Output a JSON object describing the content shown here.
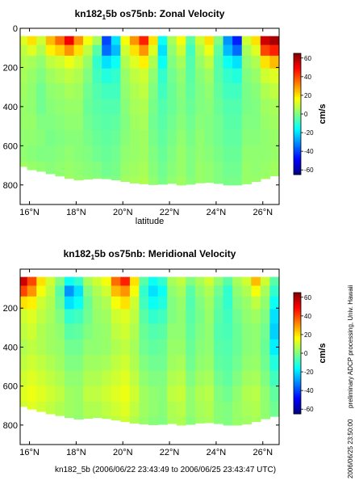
{
  "page_footer": "kn182_5b (2006/06/22 23:43:49 to 2006/06/25 23:43:47 UTC)",
  "side_note": "preliminary ADCP processing,  Univ. Hawaii",
  "side_stamp": "2006/06/25 23:50:00",
  "colorscale": [
    "#00007f",
    "#0000ff",
    "#0080ff",
    "#00ffff",
    "#80ff80",
    "#ffff00",
    "#ff8000",
    "#ff0000",
    "#7f0000"
  ],
  "chart_data": [
    {
      "type": "heatmap",
      "title": {
        "pre": "kn182",
        "sub": "1",
        "post": "5b os75nb: Zonal Velocity"
      },
      "xlabel": "latitude",
      "x_ticks": [
        {
          "v": 16,
          "label": "16°N"
        },
        {
          "v": 18,
          "label": "18°N"
        },
        {
          "v": 20,
          "label": "20°N"
        },
        {
          "v": 22,
          "label": "22°N"
        },
        {
          "v": 24,
          "label": "24°N"
        },
        {
          "v": 26,
          "label": "26°N"
        }
      ],
      "y_ticks": [
        {
          "v": 0,
          "label": "0"
        },
        {
          "v": 200,
          "label": "200"
        },
        {
          "v": 400,
          "label": "400"
        },
        {
          "v": 600,
          "label": "600"
        },
        {
          "v": 800,
          "label": "800"
        }
      ],
      "xlim": [
        15.6,
        26.7
      ],
      "ylim": [
        900,
        0
      ],
      "colorbar": {
        "label": "cm/s",
        "range": [
          -65,
          65
        ],
        "ticks": [
          -60,
          -40,
          -20,
          0,
          20,
          40,
          60
        ]
      },
      "depth_top": 40,
      "bottom_profile": [
        [
          15.6,
          700
        ],
        [
          16.0,
          720
        ],
        [
          16.5,
          730
        ],
        [
          17.0,
          745
        ],
        [
          17.5,
          760
        ],
        [
          18.0,
          775
        ],
        [
          18.5,
          770
        ],
        [
          19.0,
          765
        ],
        [
          19.5,
          770
        ],
        [
          20.0,
          780
        ],
        [
          20.5,
          790
        ],
        [
          21.0,
          795
        ],
        [
          21.5,
          800
        ],
        [
          22.0,
          790
        ],
        [
          22.5,
          800
        ],
        [
          23.0,
          795
        ],
        [
          23.5,
          785
        ],
        [
          24.0,
          790
        ],
        [
          24.5,
          800
        ],
        [
          25.0,
          800
        ],
        [
          25.5,
          790
        ],
        [
          26.0,
          770
        ],
        [
          26.4,
          760
        ],
        [
          26.7,
          740
        ]
      ],
      "depth_levels": [
        60,
        110,
        170,
        240,
        320,
        400,
        480,
        560,
        640,
        720,
        790
      ],
      "columns": [
        {
          "lat": 15.7,
          "u": [
            12,
            8,
            6,
            5,
            4,
            3,
            3,
            2,
            2,
            4,
            5
          ]
        },
        {
          "lat": 16.1,
          "u": [
            20,
            12,
            5,
            3,
            2,
            2,
            3,
            2,
            1,
            3,
            4
          ]
        },
        {
          "lat": 16.5,
          "u": [
            10,
            6,
            2,
            0,
            -2,
            -2,
            0,
            1,
            0,
            2,
            3
          ]
        },
        {
          "lat": 16.9,
          "u": [
            25,
            18,
            8,
            4,
            2,
            1,
            0,
            -1,
            0,
            1,
            2
          ]
        },
        {
          "lat": 17.3,
          "u": [
            35,
            22,
            10,
            6,
            3,
            2,
            1,
            0,
            1,
            2,
            3
          ]
        },
        {
          "lat": 17.7,
          "u": [
            50,
            30,
            14,
            8,
            5,
            3,
            2,
            1,
            2,
            3,
            4
          ]
        },
        {
          "lat": 18.1,
          "u": [
            30,
            20,
            10,
            6,
            4,
            3,
            2,
            1,
            1,
            2,
            3
          ]
        },
        {
          "lat": 18.5,
          "u": [
            15,
            8,
            3,
            0,
            -2,
            -3,
            -2,
            -1,
            0,
            1,
            2
          ]
        },
        {
          "lat": 18.9,
          "u": [
            5,
            -5,
            -10,
            -8,
            -6,
            -5,
            -4,
            -3,
            -2,
            0,
            1
          ]
        },
        {
          "lat": 19.3,
          "u": [
            -40,
            -35,
            -20,
            -12,
            -8,
            -6,
            -5,
            -4,
            -3,
            -2,
            0
          ]
        },
        {
          "lat": 19.7,
          "u": [
            -20,
            -25,
            -15,
            -10,
            -8,
            -6,
            -4,
            -3,
            -2,
            -1,
            0
          ]
        },
        {
          "lat": 20.1,
          "u": [
            15,
            10,
            6,
            3,
            2,
            1,
            0,
            1,
            2,
            3,
            4
          ]
        },
        {
          "lat": 20.5,
          "u": [
            30,
            20,
            12,
            8,
            6,
            5,
            4,
            3,
            3,
            4,
            5
          ]
        },
        {
          "lat": 20.9,
          "u": [
            45,
            30,
            18,
            10,
            8,
            6,
            5,
            4,
            4,
            5,
            6
          ]
        },
        {
          "lat": 21.3,
          "u": [
            20,
            12,
            6,
            2,
            0,
            -1,
            -2,
            -1,
            0,
            1,
            2
          ]
        },
        {
          "lat": 21.7,
          "u": [
            -15,
            -20,
            -15,
            -10,
            -8,
            -6,
            -5,
            -4,
            -3,
            -2,
            -1
          ]
        },
        {
          "lat": 22.1,
          "u": [
            5,
            2,
            0,
            -2,
            -3,
            -3,
            -2,
            -1,
            0,
            1,
            2
          ]
        },
        {
          "lat": 22.5,
          "u": [
            15,
            10,
            5,
            2,
            1,
            0,
            1,
            2,
            3,
            3,
            4
          ]
        },
        {
          "lat": 22.9,
          "u": [
            -5,
            -8,
            -6,
            -5,
            -4,
            -3,
            -2,
            -1,
            0,
            0,
            1
          ]
        },
        {
          "lat": 23.3,
          "u": [
            10,
            6,
            3,
            1,
            0,
            0,
            1,
            2,
            2,
            3,
            3
          ]
        },
        {
          "lat": 23.7,
          "u": [
            20,
            14,
            8,
            4,
            2,
            1,
            0,
            0,
            1,
            2,
            2
          ]
        },
        {
          "lat": 24.1,
          "u": [
            0,
            -4,
            -6,
            -5,
            -4,
            -3,
            -2,
            -2,
            -1,
            0,
            0
          ]
        },
        {
          "lat": 24.5,
          "u": [
            -30,
            -25,
            -15,
            -10,
            -8,
            -6,
            -5,
            -4,
            -3,
            -2,
            -1
          ]
        },
        {
          "lat": 24.9,
          "u": [
            -45,
            -35,
            -20,
            -12,
            -8,
            -6,
            -5,
            -4,
            -3,
            -2,
            -1
          ]
        },
        {
          "lat": 25.3,
          "u": [
            10,
            5,
            2,
            0,
            -1,
            -1,
            0,
            1,
            2,
            3,
            3
          ]
        },
        {
          "lat": 25.7,
          "u": [
            20,
            12,
            6,
            3,
            1,
            0,
            0,
            1,
            2,
            2,
            3
          ]
        },
        {
          "lat": 26.1,
          "u": [
            55,
            40,
            20,
            10,
            6,
            4,
            3,
            2,
            2,
            3,
            4
          ]
        },
        {
          "lat": 26.5,
          "u": [
            60,
            45,
            25,
            12,
            8,
            5,
            4,
            3,
            3,
            4,
            5
          ]
        }
      ]
    },
    {
      "type": "heatmap",
      "title": {
        "pre": "kn182",
        "sub": "1",
        "post": "5b os75nb: Meridional Velocity"
      },
      "xlabel": "",
      "x_ticks": [
        {
          "v": 16,
          "label": "16°N"
        },
        {
          "v": 18,
          "label": "18°N"
        },
        {
          "v": 20,
          "label": "20°N"
        },
        {
          "v": 22,
          "label": "22°N"
        },
        {
          "v": 24,
          "label": "24°N"
        },
        {
          "v": 26,
          "label": "26°N"
        }
      ],
      "y_ticks": [
        {
          "v": 200,
          "label": "200"
        },
        {
          "v": 400,
          "label": "400"
        },
        {
          "v": 600,
          "label": "600"
        },
        {
          "v": 800,
          "label": "800"
        }
      ],
      "xlim": [
        15.6,
        26.7
      ],
      "ylim": [
        900,
        0
      ],
      "colorbar": {
        "label": "cm/s",
        "range": [
          -65,
          65
        ],
        "ticks": [
          -60,
          -40,
          -20,
          0,
          20,
          40,
          60
        ]
      },
      "depth_top": 40,
      "bottom_profile": [
        [
          15.6,
          700
        ],
        [
          16.0,
          715
        ],
        [
          16.5,
          730
        ],
        [
          17.0,
          745
        ],
        [
          17.5,
          755
        ],
        [
          18.0,
          770
        ],
        [
          18.5,
          765
        ],
        [
          19.0,
          760
        ],
        [
          19.5,
          770
        ],
        [
          20.0,
          780
        ],
        [
          20.5,
          790
        ],
        [
          21.0,
          795
        ],
        [
          21.5,
          800
        ],
        [
          22.0,
          790
        ],
        [
          22.5,
          800
        ],
        [
          23.0,
          795
        ],
        [
          23.5,
          785
        ],
        [
          24.0,
          790
        ],
        [
          24.5,
          800
        ],
        [
          25.0,
          800
        ],
        [
          25.5,
          790
        ],
        [
          26.0,
          770
        ],
        [
          26.4,
          760
        ],
        [
          26.7,
          745
        ]
      ],
      "depth_levels": [
        60,
        110,
        170,
        240,
        320,
        400,
        480,
        560,
        640,
        720,
        790
      ],
      "columns": [
        {
          "lat": 15.7,
          "u": [
            55,
            40,
            20,
            10,
            8,
            6,
            8,
            10,
            12,
            10,
            8
          ]
        },
        {
          "lat": 16.1,
          "u": [
            40,
            30,
            18,
            12,
            10,
            8,
            10,
            12,
            14,
            12,
            10
          ]
        },
        {
          "lat": 16.5,
          "u": [
            20,
            15,
            10,
            8,
            6,
            6,
            8,
            10,
            12,
            10,
            8
          ]
        },
        {
          "lat": 16.9,
          "u": [
            10,
            8,
            6,
            5,
            4,
            4,
            6,
            8,
            10,
            8,
            6
          ]
        },
        {
          "lat": 17.3,
          "u": [
            0,
            -5,
            -3,
            0,
            2,
            3,
            4,
            6,
            8,
            6,
            5
          ]
        },
        {
          "lat": 17.7,
          "u": [
            -15,
            -30,
            -20,
            -10,
            -5,
            -2,
            0,
            2,
            4,
            4,
            3
          ]
        },
        {
          "lat": 18.1,
          "u": [
            -10,
            -20,
            -15,
            -8,
            -4,
            -2,
            0,
            2,
            3,
            3,
            2
          ]
        },
        {
          "lat": 18.5,
          "u": [
            5,
            0,
            -3,
            -2,
            0,
            2,
            4,
            6,
            8,
            6,
            5
          ]
        },
        {
          "lat": 18.9,
          "u": [
            10,
            6,
            4,
            3,
            2,
            2,
            4,
            6,
            8,
            6,
            5
          ]
        },
        {
          "lat": 19.3,
          "u": [
            15,
            10,
            6,
            4,
            3,
            3,
            5,
            8,
            10,
            8,
            6
          ]
        },
        {
          "lat": 19.7,
          "u": [
            35,
            25,
            15,
            10,
            8,
            6,
            8,
            10,
            12,
            10,
            8
          ]
        },
        {
          "lat": 20.1,
          "u": [
            45,
            30,
            20,
            12,
            10,
            8,
            10,
            12,
            14,
            12,
            10
          ]
        },
        {
          "lat": 20.5,
          "u": [
            20,
            15,
            10,
            8,
            6,
            5,
            6,
            8,
            10,
            8,
            6
          ]
        },
        {
          "lat": 20.9,
          "u": [
            -5,
            -10,
            -8,
            -5,
            -3,
            -2,
            0,
            2,
            4,
            4,
            3
          ]
        },
        {
          "lat": 21.3,
          "u": [
            -15,
            -20,
            -15,
            -10,
            -6,
            -4,
            -2,
            0,
            2,
            2,
            1
          ]
        },
        {
          "lat": 21.7,
          "u": [
            -10,
            -15,
            -12,
            -8,
            -5,
            -3,
            -2,
            0,
            1,
            1,
            0
          ]
        },
        {
          "lat": 22.1,
          "u": [
            5,
            2,
            0,
            0,
            2,
            3,
            4,
            6,
            8,
            6,
            5
          ]
        },
        {
          "lat": 22.5,
          "u": [
            8,
            5,
            3,
            2,
            2,
            3,
            5,
            7,
            9,
            7,
            6
          ]
        },
        {
          "lat": 22.9,
          "u": [
            0,
            -5,
            -6,
            -5,
            -4,
            -3,
            -2,
            0,
            2,
            2,
            1
          ]
        },
        {
          "lat": 23.3,
          "u": [
            5,
            2,
            0,
            -1,
            0,
            1,
            2,
            4,
            6,
            5,
            4
          ]
        },
        {
          "lat": 23.7,
          "u": [
            10,
            6,
            4,
            3,
            2,
            2,
            3,
            5,
            7,
            6,
            5
          ]
        },
        {
          "lat": 24.1,
          "u": [
            2,
            -2,
            -4,
            -5,
            -6,
            -5,
            -4,
            -2,
            0,
            1,
            1
          ]
        },
        {
          "lat": 24.5,
          "u": [
            -5,
            -10,
            -10,
            -8,
            -7,
            -6,
            -5,
            -4,
            -2,
            0,
            0
          ]
        },
        {
          "lat": 24.9,
          "u": [
            5,
            2,
            0,
            -2,
            -3,
            -3,
            -2,
            0,
            2,
            3,
            3
          ]
        },
        {
          "lat": 25.3,
          "u": [
            10,
            6,
            3,
            2,
            1,
            1,
            2,
            4,
            6,
            5,
            4
          ]
        },
        {
          "lat": 25.7,
          "u": [
            25,
            15,
            8,
            4,
            2,
            2,
            3,
            5,
            7,
            6,
            5
          ]
        },
        {
          "lat": 26.1,
          "u": [
            10,
            5,
            2,
            0,
            -2,
            -3,
            -2,
            0,
            2,
            2,
            2
          ]
        },
        {
          "lat": 26.5,
          "u": [
            -5,
            -10,
            -15,
            -20,
            -22,
            -18,
            -12,
            -8,
            -4,
            -2,
            0
          ]
        }
      ]
    }
  ]
}
